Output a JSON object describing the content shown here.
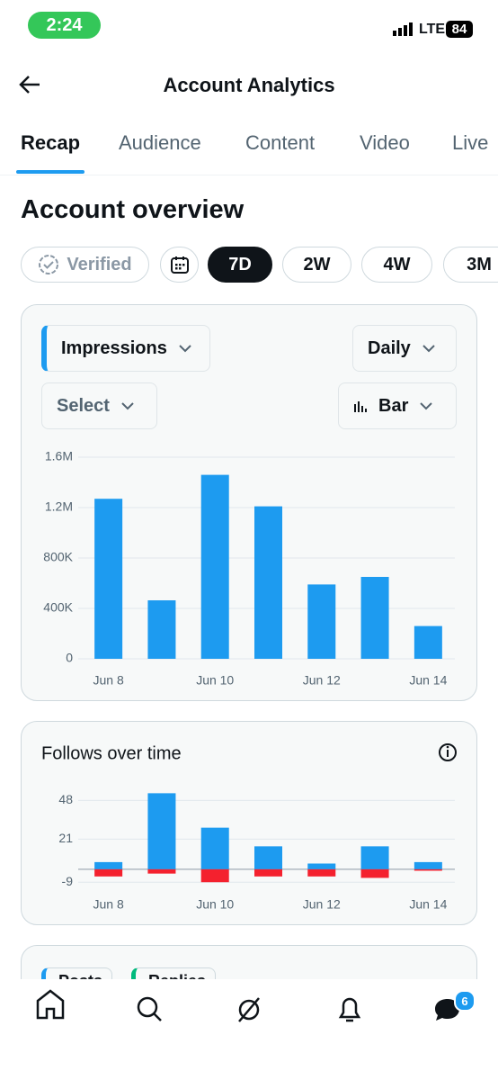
{
  "status_bar": {
    "time": "2:24",
    "network": "LTE",
    "battery": "84"
  },
  "header": {
    "title": "Account Analytics"
  },
  "tabs": [
    "Recap",
    "Audience",
    "Content",
    "Video",
    "Live"
  ],
  "section_title": "Account overview",
  "filters": [
    "Verified",
    "7D",
    "2W",
    "4W",
    "3M"
  ],
  "impressions_card": {
    "metric": "Impressions",
    "interval": "Daily",
    "compare": "Select",
    "chart_style": "Bar",
    "chart_data": {
      "type": "bar",
      "color": "#1d9bf0",
      "categories": [
        "Jun 8",
        null,
        "Jun 10",
        null,
        "Jun 12",
        null,
        "Jun 14"
      ],
      "values": [
        1270000,
        464000,
        1460000,
        1210000,
        590000,
        650000,
        260000
      ],
      "ylim": [
        0,
        1600000
      ],
      "yticks": [
        0,
        {
          "value": 400000,
          "label": "400K"
        },
        {
          "value": 800000,
          "label": "800K"
        },
        {
          "value": 1200000,
          "label": "1.2M"
        },
        {
          "value": 1600000,
          "label": "1.6M"
        }
      ],
      "grid": true
    }
  },
  "follows_card": {
    "chart_data": {
      "type": "bar",
      "stacked": true,
      "title": "Follows over time",
      "categories": [
        "Jun 8",
        null,
        "Jun 10",
        null,
        "Jun 12",
        null,
        "Jun 14"
      ],
      "series": [
        {
          "color": "#1d9bf0",
          "values": [
            5,
            53,
            29,
            16,
            4,
            16,
            5
          ]
        },
        {
          "color": "#f4212e",
          "values": [
            -5,
            -3,
            -9,
            -5,
            -5,
            -6,
            -1
          ]
        }
      ],
      "ylim": [
        -12,
        57
      ],
      "yticks": [
        -9,
        21,
        48
      ],
      "grid": true
    }
  },
  "next_card": {
    "legend": [
      "Posts",
      "Replies"
    ]
  },
  "nav": {
    "messages_badge": "6"
  }
}
